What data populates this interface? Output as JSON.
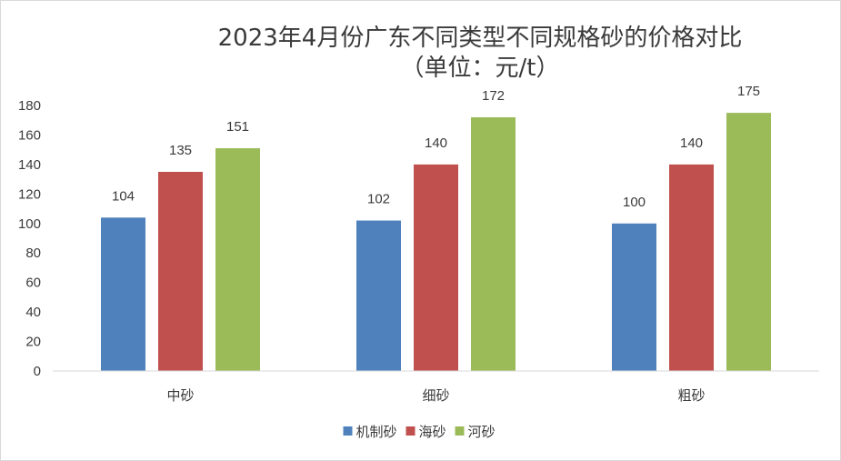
{
  "chart_data": {
    "type": "bar",
    "title": "2023年4月份广东不同类型不同规格砂的价格对比",
    "subtitle": "（单位：元/t）",
    "categories": [
      "中砂",
      "细砂",
      "粗砂"
    ],
    "series": [
      {
        "name": "机制砂",
        "color": "#4f81bd",
        "values": [
          104,
          102,
          100
        ]
      },
      {
        "name": "海砂",
        "color": "#c0504d",
        "values": [
          135,
          140,
          140
        ]
      },
      {
        "name": "河砂",
        "color": "#9bbb59",
        "values": [
          151,
          172,
          175
        ]
      }
    ],
    "ylim": [
      0,
      180
    ],
    "yticks": [
      0,
      20,
      40,
      60,
      80,
      100,
      120,
      140,
      160,
      180
    ],
    "grid": false,
    "legend": "bottom"
  }
}
